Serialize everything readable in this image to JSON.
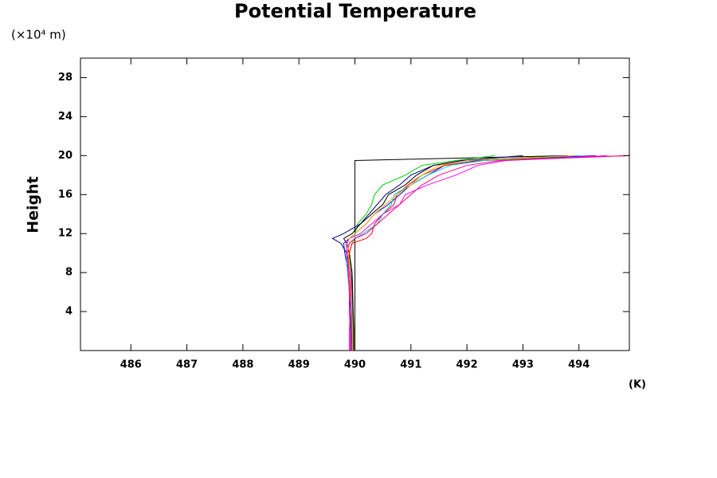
{
  "chart_data": {
    "type": "line",
    "title": "Potential Temperature",
    "y_unit": "(×10⁴ m)",
    "ylabel": "Height",
    "x_unit": "(K)",
    "xlim": [
      485.1,
      494.9
    ],
    "xticks": [
      486,
      487,
      488,
      489,
      490,
      491,
      492,
      493,
      494
    ],
    "ylim": [
      0,
      30
    ],
    "yticks": [
      4,
      8,
      12,
      16,
      20,
      24,
      28
    ],
    "y": [
      0,
      2,
      4,
      6,
      8,
      9,
      10,
      11,
      11.5,
      12,
      13,
      14,
      15,
      16,
      17,
      18,
      19,
      19.5,
      20
    ],
    "series": [
      {
        "color": "#000000",
        "values": [
          490.0,
          490.0,
          490.0,
          490.0,
          490.0,
          490.0,
          490.0,
          490.0,
          490.0,
          490.0,
          490.0,
          490.0,
          490.0,
          490.0,
          490.0,
          490.0,
          490.0,
          490.0,
          493.8
        ]
      },
      {
        "color": "#00cc00",
        "values": [
          489.95,
          489.95,
          489.95,
          489.95,
          489.95,
          489.93,
          489.9,
          489.95,
          490.0,
          490.0,
          490.05,
          490.2,
          490.3,
          490.35,
          490.5,
          490.9,
          491.2,
          491.8,
          492.5
        ]
      },
      {
        "color": "#000080",
        "values": [
          489.97,
          489.97,
          489.96,
          489.95,
          489.93,
          489.9,
          489.85,
          489.75,
          489.6,
          489.8,
          490.1,
          490.25,
          490.4,
          490.55,
          490.8,
          491.0,
          491.4,
          491.9,
          493.0
        ]
      },
      {
        "color": "#000000",
        "values": [
          489.98,
          489.98,
          489.97,
          489.96,
          489.95,
          489.92,
          489.9,
          489.85,
          489.8,
          489.95,
          490.1,
          490.3,
          490.5,
          490.6,
          490.9,
          491.1,
          491.4,
          492.0,
          493.8
        ]
      },
      {
        "color": "#0000ff",
        "values": [
          489.93,
          489.93,
          489.92,
          489.9,
          489.88,
          489.85,
          489.82,
          489.8,
          489.9,
          490.0,
          490.2,
          490.35,
          490.6,
          490.8,
          491.0,
          491.3,
          491.6,
          492.2,
          494.3
        ]
      },
      {
        "color": "#ff0000",
        "values": [
          489.95,
          489.94,
          489.93,
          489.92,
          489.9,
          489.88,
          489.9,
          489.95,
          490.2,
          490.3,
          490.35,
          490.5,
          490.7,
          490.75,
          490.95,
          491.2,
          491.6,
          492.3,
          494.9
        ]
      },
      {
        "color": "#00cccc",
        "values": [
          489.96,
          489.95,
          489.94,
          489.9,
          489.87,
          489.85,
          489.85,
          489.9,
          490.0,
          490.15,
          490.4,
          490.5,
          490.65,
          490.7,
          491.0,
          491.3,
          491.7,
          492.3,
          494.0
        ]
      },
      {
        "color": "#ff00ff",
        "values": [
          489.9,
          489.9,
          489.92,
          489.93,
          489.9,
          489.88,
          489.85,
          489.85,
          489.9,
          490.1,
          490.3,
          490.5,
          490.8,
          490.9,
          491.3,
          491.8,
          492.2,
          492.7,
          494.5
        ]
      },
      {
        "color": "#ff0080",
        "values": [
          489.92,
          489.92,
          489.9,
          489.9,
          489.88,
          489.87,
          489.86,
          489.9,
          490.0,
          490.2,
          490.4,
          490.6,
          490.8,
          491.0,
          491.2,
          491.5,
          492.0,
          492.6,
          494.9
        ]
      },
      {
        "color": "#ffaa00",
        "values": [
          489.96,
          489.96,
          489.95,
          489.94,
          489.92,
          489.9,
          489.88,
          489.87,
          489.9,
          490.0,
          490.2,
          490.35,
          490.55,
          490.75,
          491.0,
          491.2,
          491.5,
          492.0,
          493.9
        ]
      }
    ]
  }
}
